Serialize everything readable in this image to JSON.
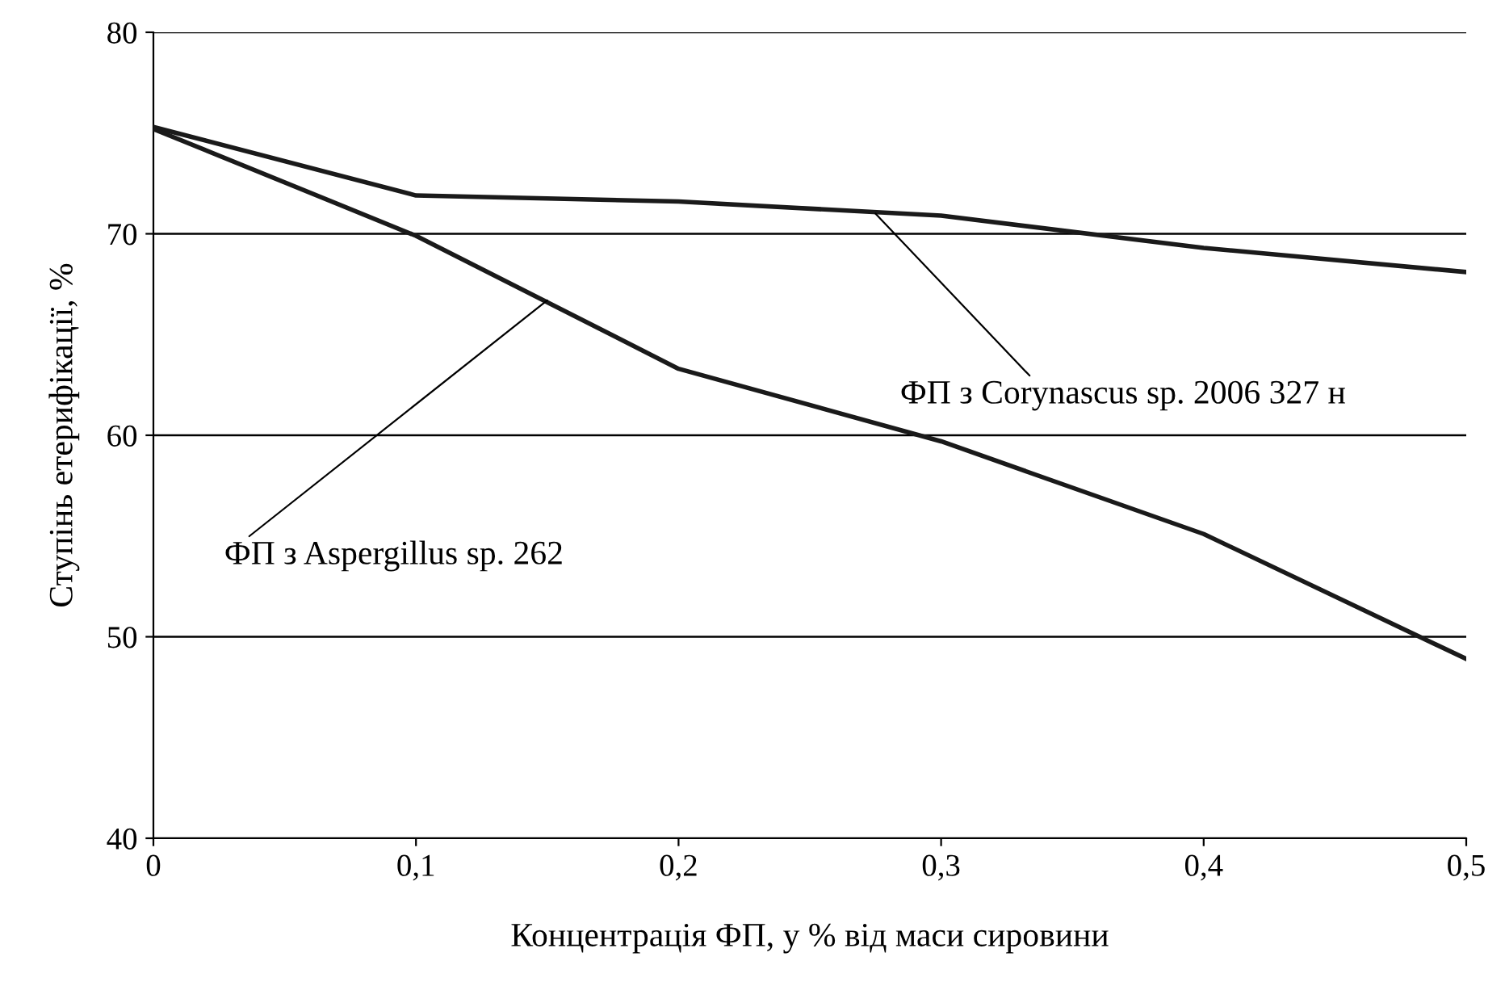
{
  "chart_data": {
    "type": "line",
    "xlabel": "Концентрація ФП, у % від маси сировини",
    "ylabel": "Ступінь етерифікації, %",
    "x": [
      0,
      0.1,
      0.2,
      0.3,
      0.4,
      0.5
    ],
    "series": [
      {
        "color": "#1a1a1a",
        "values": [
          75.3,
          71.9,
          71.6,
          70.9,
          69.3,
          68.1
        ]
      },
      {
        "color": "#1a1a1a",
        "values": [
          75.2,
          69.9,
          63.3,
          59.7,
          55.1,
          48.9
        ]
      }
    ],
    "annotations": [
      {
        "text": "ФП з Corynascus sp. 2006 327 н",
        "x": 0.275,
        "y": 71.0
      },
      {
        "text": "ФП з Aspergillus sp. 262",
        "x": 0.15,
        "y": 66.7
      }
    ],
    "xlim": [
      0,
      0.5
    ],
    "ylim": [
      40,
      80
    ],
    "xticks": [
      0,
      {
        "value": 0.1,
        "label": "0,1"
      },
      {
        "value": 0.2,
        "label": "0,2"
      },
      {
        "value": 0.3,
        "label": "0,3"
      },
      {
        "value": 0.4,
        "label": "0,4"
      },
      {
        "value": 0.5,
        "label": "0,5"
      }
    ],
    "yticks": [
      40,
      50,
      60,
      70,
      80
    ],
    "grid": "y",
    "legend": false,
    "marker": "none",
    "line_style": "solid"
  }
}
